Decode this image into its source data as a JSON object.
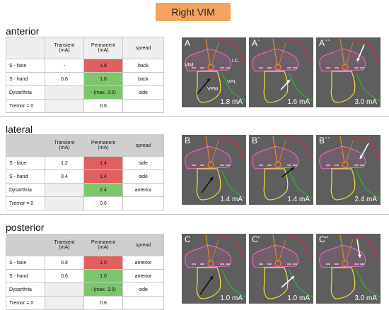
{
  "title": "Right VIM",
  "sections": [
    {
      "name": "anterior",
      "headers": [
        "",
        "Transient\n(mA)",
        "Permanent\n(mA)",
        "spread"
      ],
      "rows": [
        {
          "label": "S - face",
          "transient": "-",
          "permanent": "1.8",
          "spread": "back",
          "color": "red"
        },
        {
          "label": "S - hand",
          "transient": "0.6",
          "permanent": "1.6",
          "spread": "back",
          "color": "green"
        },
        {
          "label": "Dysarthria",
          "transient": "",
          "permanent": "- (max. 3.0)",
          "spread": "side",
          "color": "green"
        },
        {
          "label": "Tremor = 0",
          "transient": "",
          "permanent": "0.6",
          "spread": "",
          "color": "none"
        }
      ],
      "panels": [
        {
          "label": "A",
          "current": "1.8 mA"
        },
        {
          "label": "A`",
          "current": "1.6 mA"
        },
        {
          "label": "A``",
          "current": "3.0 mA"
        }
      ],
      "anatomy": {
        "vim": "VIM",
        "vpm": "VPM",
        "vpl": "VPL",
        "ic": "I.C."
      }
    },
    {
      "name": "lateral",
      "headers": [
        "",
        "Transient\n(mA)",
        "Permanent\n(mA)",
        "spread"
      ],
      "rows": [
        {
          "label": "S - face",
          "transient": "1.2",
          "permanent": "1.4",
          "spread": "side",
          "color": "red"
        },
        {
          "label": "S - hand",
          "transient": "0.4",
          "permanent": "1.4",
          "spread": "side",
          "color": "red"
        },
        {
          "label": "Dysarthria",
          "transient": "",
          "permanent": "2.4",
          "spread": "anterior",
          "color": "green"
        },
        {
          "label": "Tremor = 0",
          "transient": "",
          "permanent": "0.6",
          "spread": "",
          "color": "none"
        }
      ],
      "panels": [
        {
          "label": "B",
          "current": "1.4 mA"
        },
        {
          "label": "B`",
          "current": "1.4 mA"
        },
        {
          "label": "B``",
          "current": "2.4 mA"
        }
      ]
    },
    {
      "name": "posterior",
      "headers": [
        "",
        "Transient\n(mA)",
        "Permanent\n(mA)",
        "spread"
      ],
      "rows": [
        {
          "label": "S - face",
          "transient": "0.8",
          "permanent": "1.0",
          "spread": "anterior",
          "color": "red"
        },
        {
          "label": "S -  hand",
          "transient": "0.6",
          "permanent": "1.0",
          "spread": "anterior",
          "color": "green"
        },
        {
          "label": "Dysarthria",
          "transient": "",
          "permanent": "- (max. 3.0)",
          "spread": "side",
          "color": "green"
        },
        {
          "label": "Tremor = 0",
          "transient": "",
          "permanent": "0.6",
          "spread": "",
          "color": "none"
        }
      ],
      "panels": [
        {
          "label": "C",
          "current": "1.0 mA"
        },
        {
          "label": "C′",
          "current": "1.0 mA"
        },
        {
          "label": "C′′",
          "current": "3.0 mA"
        }
      ]
    }
  ],
  "colors": {
    "badge": "#f4a460",
    "red_cell": "#e06060",
    "green_cell": "#7cc76c",
    "header_cell": "#cfcfcf",
    "vim_outline": "#ff66cc",
    "vpm_outline": "#f0e040",
    "vpl_outline": "#33aa33",
    "ic_outline": "#e0204a",
    "electrode": "#e08a20"
  }
}
